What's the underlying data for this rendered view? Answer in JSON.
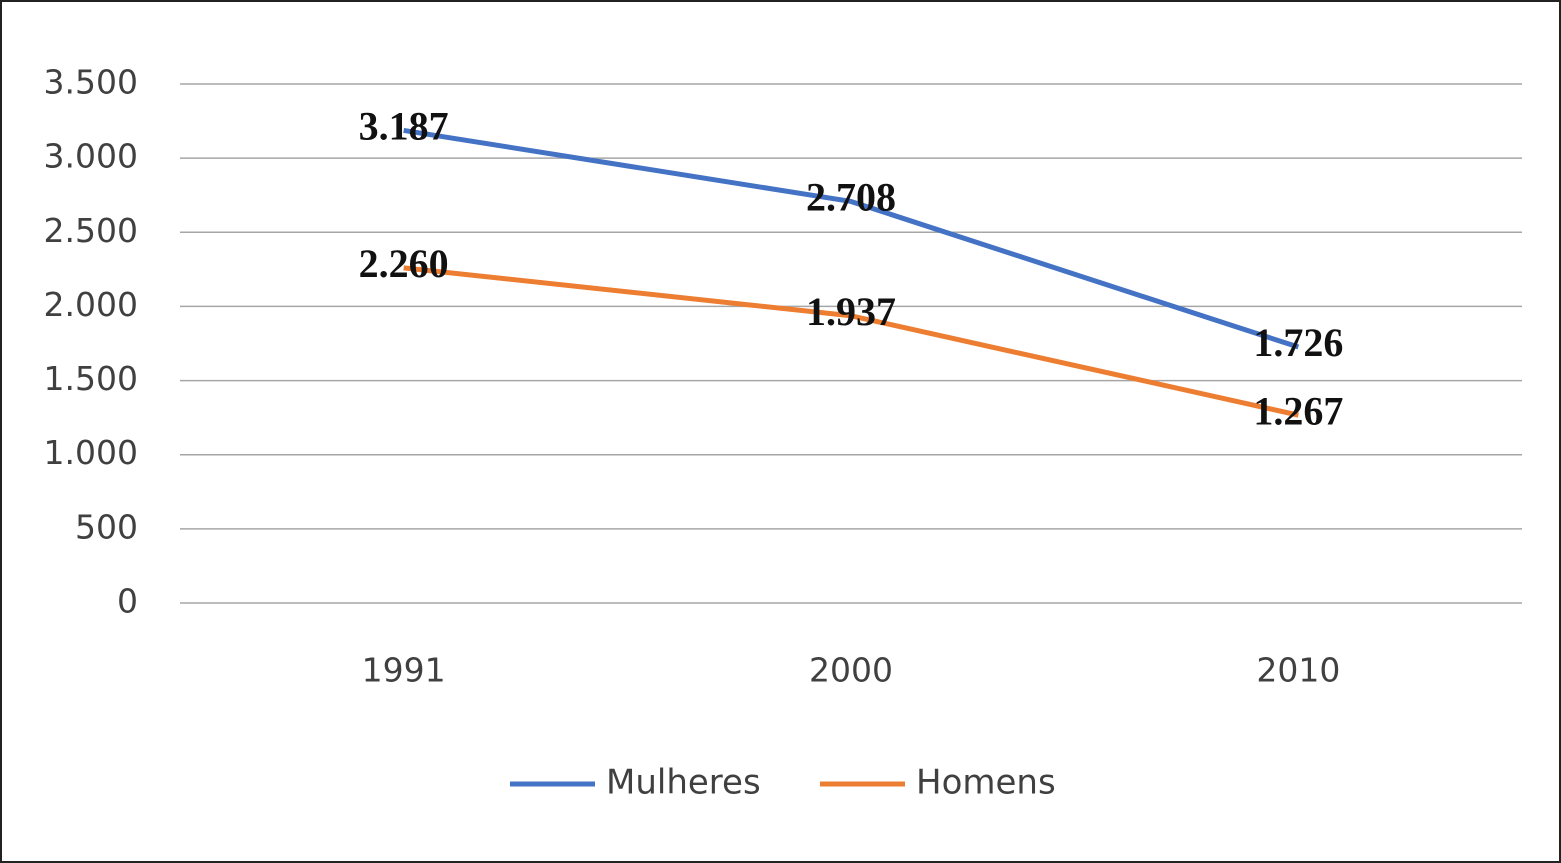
{
  "chart_data": {
    "type": "line",
    "categories": [
      "1991",
      "2000",
      "2010"
    ],
    "series": [
      {
        "name": "Mulheres",
        "color": "#4472c4",
        "values": [
          3187,
          2708,
          1726
        ],
        "value_labels": [
          "3.187",
          "2.708",
          "1.726"
        ]
      },
      {
        "name": "Homens",
        "color": "#ed7d31",
        "values": [
          2260,
          1937,
          1267
        ],
        "value_labels": [
          "2.260",
          "1.937",
          "1.267"
        ]
      }
    ],
    "ylim": [
      0,
      3500
    ],
    "yticks": [
      0,
      500,
      {
        "value": 1000,
        "label": "1.000"
      },
      {
        "value": 1500,
        "label": "1.500"
      },
      {
        "value": 2000,
        "label": "2.000"
      },
      {
        "value": 2500,
        "label": "2.500"
      },
      {
        "value": 3000,
        "label": "3.000"
      },
      {
        "value": 3500,
        "label": "3.500"
      }
    ],
    "grid": true,
    "legend": "bottom"
  }
}
